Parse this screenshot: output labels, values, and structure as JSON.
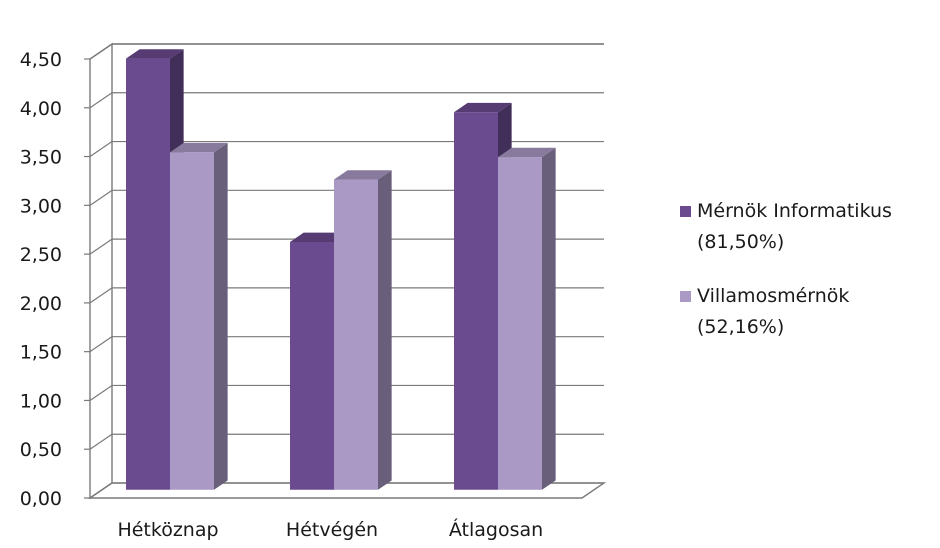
{
  "chart_data": {
    "type": "bar",
    "categories": [
      "Hétköznap",
      "Hétvégén",
      "Átlagosan"
    ],
    "series": [
      {
        "name": "Mérnök Informatikus (81,50%)",
        "legend_lines": [
          "Mérnök Informatikus",
          "(81,50%)"
        ],
        "values": [
          4.42,
          2.54,
          3.87
        ],
        "color": "#6b4b8f"
      },
      {
        "name": "Villamosmérnök (52,16%)",
        "legend_lines": [
          "Villamosmérnök",
          "(52,16%)"
        ],
        "values": [
          3.46,
          3.18,
          3.41
        ],
        "color": "#a999c4"
      }
    ],
    "ylim": [
      0,
      4.5
    ],
    "y_ticks": [
      "0,00",
      "0,50",
      "1,00",
      "1,50",
      "2,00",
      "2,50",
      "3,00",
      "3,50",
      "4,00",
      "4,50"
    ],
    "grid": true,
    "legend_position": "right",
    "title": "",
    "xlabel": "",
    "ylabel": ""
  }
}
